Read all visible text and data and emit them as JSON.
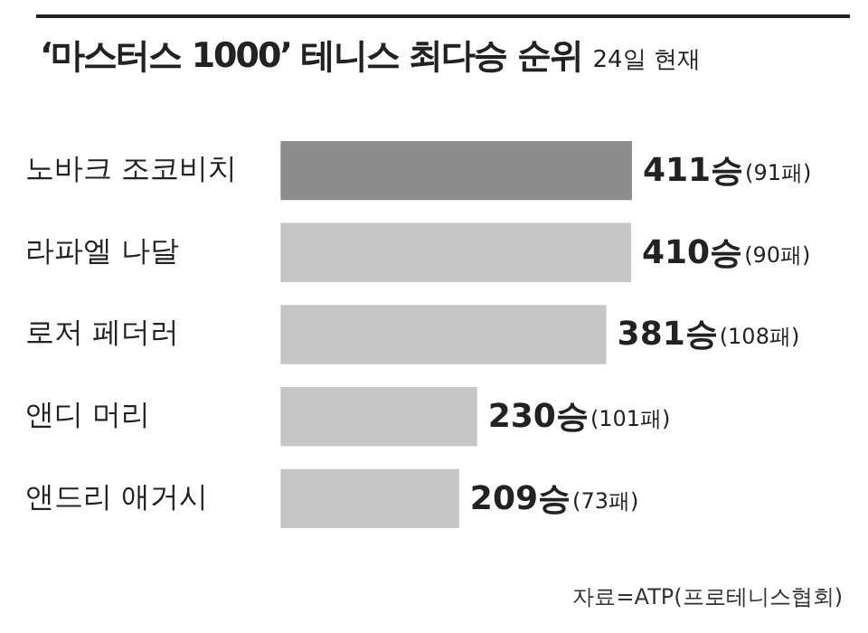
{
  "chart_data": {
    "type": "bar",
    "orientation": "horizontal",
    "title": "‘마스터스 1000’ 테니스 최다승 순위",
    "subtitle": "24일 현재",
    "categories": [
      "노바크 조코비치",
      "라파엘 나달",
      "로저 페더러",
      "앤디 머리",
      "앤드리 애거시"
    ],
    "values": [
      411,
      410,
      381,
      230,
      209
    ],
    "colors": [
      "#8c8c8c",
      "#c6c6c6",
      "#c6c6c6",
      "#c6c6c6",
      "#c6c6c6"
    ],
    "value_labels": [
      "411승(91패)",
      "410승(90패)",
      "381승(108패)",
      "230승(101패)",
      "209승(73패)"
    ],
    "annotations": [
      "자료=ATP(프로테니스협회)"
    ],
    "legend": false
  }
}
